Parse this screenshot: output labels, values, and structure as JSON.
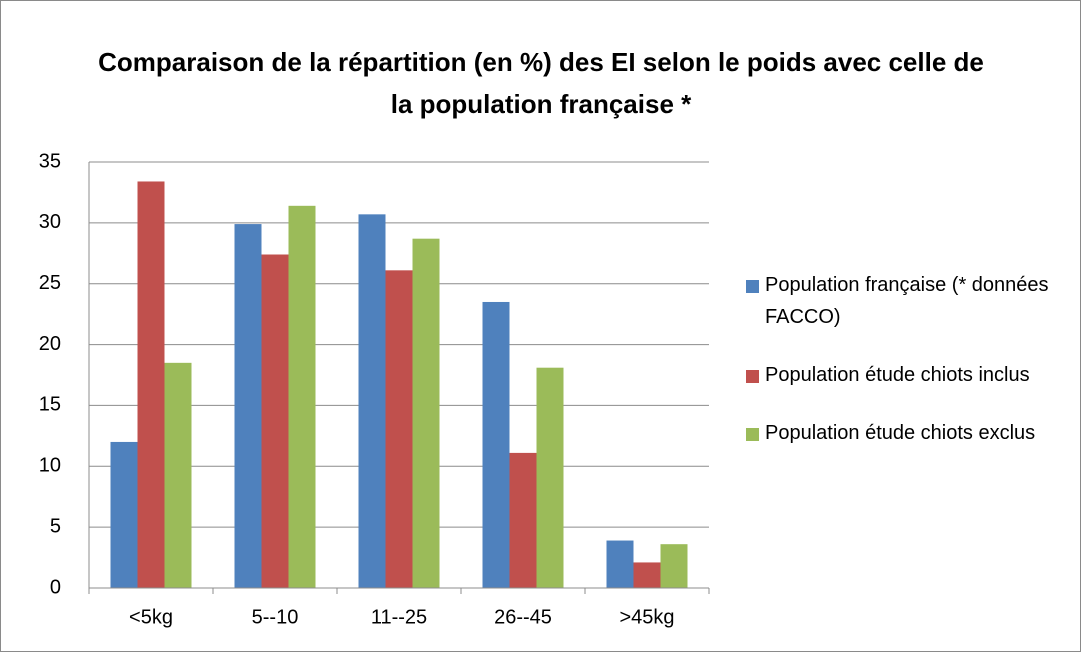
{
  "chart_data": {
    "type": "bar",
    "title": "Comparaison de la répartition  (en %) des EI selon le poids avec celle de la population française *",
    "categories": [
      "<5kg",
      "5--10",
      "11--25",
      "26--45",
      ">45kg"
    ],
    "series": [
      {
        "name": "Population française (* données FACCO)",
        "color": "#4f81bd",
        "values": [
          12,
          29.9,
          30.7,
          23.5,
          3.9
        ]
      },
      {
        "name": "Population étude chiots inclus",
        "color": "#c0504d",
        "values": [
          33.4,
          27.4,
          26.1,
          11.1,
          2.1
        ]
      },
      {
        "name": "Population étude chiots exclus",
        "color": "#9bbb59",
        "values": [
          18.5,
          31.4,
          28.7,
          18.1,
          3.6
        ]
      }
    ],
    "ylim": [
      0,
      35
    ],
    "yticks": [
      0,
      5,
      10,
      15,
      20,
      25,
      30,
      35
    ],
    "grid": true,
    "legend": "right"
  }
}
